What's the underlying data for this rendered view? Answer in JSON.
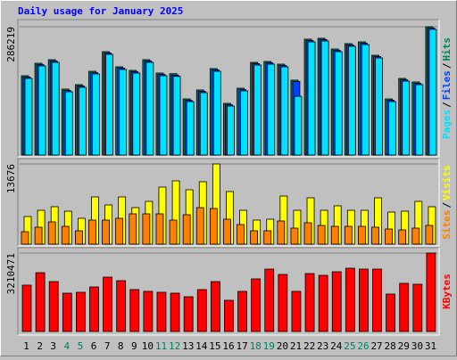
{
  "chart_data": [
    {
      "type": "bar",
      "title": "Daily usage for January 2025",
      "legend_separator": "/",
      "ylim": [
        0,
        298100
      ],
      "yticks": [
        286219
      ],
      "series": [
        {
          "name": "Pages",
          "color": "#00e0ff",
          "values": [
            170900,
            198700,
            206700,
            141100,
            151000,
            180800,
            224600,
            190800,
            182800,
            206700,
            176900,
            175400,
            119200,
            139100,
            186800,
            109300,
            143100,
            200700,
            202700,
            196700,
            131000,
            252400,
            254400,
            230500,
            242500,
            246400,
            216600,
            119200,
            164900,
            157000,
            280200
          ]
        },
        {
          "name": "Files",
          "color": "#0040ff",
          "values": [
            173900,
            201700,
            209700,
            144100,
            154000,
            183800,
            227600,
            193800,
            185800,
            209700,
            179900,
            178400,
            122200,
            142100,
            189800,
            112300,
            146100,
            203700,
            205700,
            199700,
            164000,
            255400,
            257400,
            233500,
            245500,
            249400,
            219600,
            122200,
            167900,
            160000,
            283200
          ]
        },
        {
          "name": "Hits",
          "color": "#00805c",
          "values": [
            176900,
            204700,
            212700,
            147100,
            157000,
            186800,
            230600,
            196800,
            188800,
            212700,
            182900,
            181400,
            125200,
            145100,
            192800,
            115300,
            149100,
            206700,
            208700,
            202700,
            167000,
            258400,
            260400,
            236500,
            248500,
            252400,
            222600,
            125200,
            170900,
            163000,
            286219
          ]
        }
      ]
    },
    {
      "type": "bar",
      "legend_separator": "/",
      "ylim": [
        0,
        13980
      ],
      "yticks": [
        13676
      ],
      "series": [
        {
          "name": "Sites",
          "color": "#ff8000",
          "values": [
            2128,
            2888,
            3800,
            3040,
            2280,
            4104,
            4104,
            4408,
            5168,
            5168,
            5168,
            4104,
            5016,
            6232,
            6080,
            4256,
            3344,
            2280,
            2280,
            3952,
            2736,
            3648,
            3192,
            3040,
            3040,
            3040,
            2888,
            2584,
            2432,
            2736,
            3192
          ]
        },
        {
          "name": "Visits",
          "color": "#ffff00",
          "values": [
            4712,
            5776,
            6384,
            5624,
            4408,
            8056,
            6688,
            8056,
            6232,
            7296,
            9728,
            10792,
            9272,
            10640,
            13676,
            8968,
            5776,
            4104,
            4256,
            8208,
            5776,
            7904,
            5776,
            6536,
            5776,
            5776,
            7904,
            5472,
            5624,
            7296,
            6384
          ]
        }
      ]
    },
    {
      "type": "bar",
      "ylim": [
        0,
        3356400
      ],
      "yticks": [
        3210471
      ],
      "series": [
        {
          "name": "KBytes",
          "color": "#ff0000",
          "values": [
            1897100,
            2407900,
            2043000,
            1568800,
            1605300,
            1824200,
            2225500,
            2079500,
            1714700,
            1641700,
            1605300,
            1568800,
            1422800,
            1714700,
            2043000,
            1276900,
            1641700,
            2152500,
            2553800,
            2334900,
            1641700,
            2371400,
            2298400,
            2444400,
            2590300,
            2553800,
            2553800,
            1532300,
            1970100,
            1933600,
            3210471
          ]
        }
      ],
      "categories": [
        "1",
        "2",
        "3",
        "4",
        "5",
        "6",
        "7",
        "8",
        "9",
        "10",
        "11",
        "12",
        "13",
        "14",
        "15",
        "16",
        "17",
        "18",
        "19",
        "20",
        "21",
        "22",
        "23",
        "24",
        "25",
        "26",
        "27",
        "28",
        "29",
        "30",
        "31"
      ],
      "category_colors": [
        "#000000",
        "#000000",
        "#000000",
        "#00805c",
        "#00805c",
        "#000000",
        "#000000",
        "#000000",
        "#000000",
        "#000000",
        "#00805c",
        "#00805c",
        "#000000",
        "#000000",
        "#000000",
        "#000000",
        "#000000",
        "#00805c",
        "#00805c",
        "#000000",
        "#000000",
        "#000000",
        "#000000",
        "#000000",
        "#00805c",
        "#00805c",
        "#000000",
        "#000000",
        "#000000",
        "#000000",
        "#000000"
      ]
    }
  ]
}
